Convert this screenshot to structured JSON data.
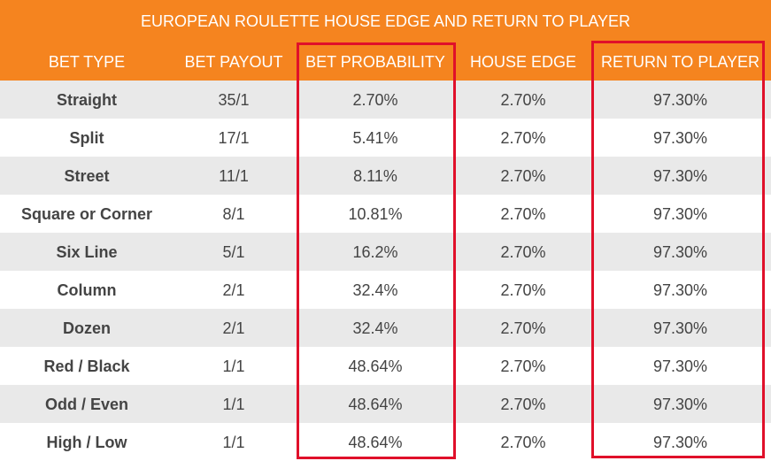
{
  "table": {
    "title": "EUROPEAN ROULETTE HOUSE EDGE AND RETURN TO PLAYER",
    "headers": [
      "BET TYPE",
      "BET PAYOUT",
      "BET PROBABILITY",
      "HOUSE EDGE",
      "RETURN TO PLAYER"
    ],
    "rows": [
      [
        "Straight",
        "35/1",
        "2.70%",
        "2.70%",
        "97.30%"
      ],
      [
        "Split",
        "17/1",
        "5.41%",
        "2.70%",
        "97.30%"
      ],
      [
        "Street",
        "11/1",
        "8.11%",
        "2.70%",
        "97.30%"
      ],
      [
        "Square or Corner",
        "8/1",
        "10.81%",
        "2.70%",
        "97.30%"
      ],
      [
        "Six Line",
        "5/1",
        "16.2%",
        "2.70%",
        "97.30%"
      ],
      [
        "Column",
        "2/1",
        "32.4%",
        "2.70%",
        "97.30%"
      ],
      [
        "Dozen",
        "2/1",
        "32.4%",
        "2.70%",
        "97.30%"
      ],
      [
        "Red / Black",
        "1/1",
        "48.64%",
        "2.70%",
        "97.30%"
      ],
      [
        "Odd / Even",
        "1/1",
        "48.64%",
        "2.70%",
        "97.30%"
      ],
      [
        "High / Low",
        "1/1",
        "48.64%",
        "2.70%",
        "97.30%"
      ]
    ]
  }
}
